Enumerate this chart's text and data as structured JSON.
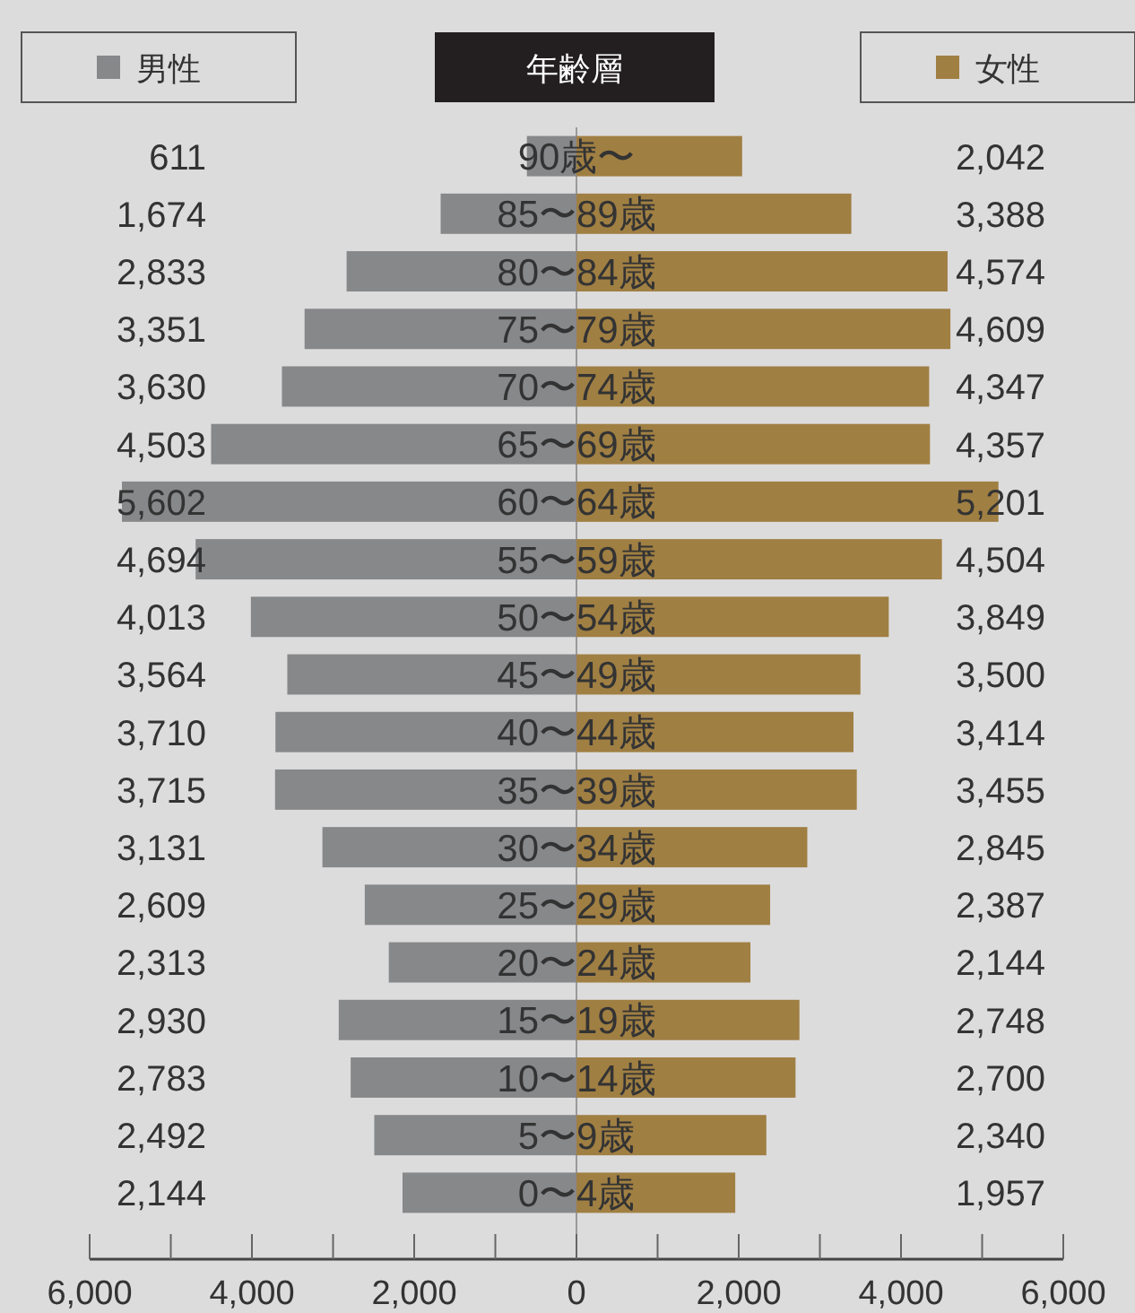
{
  "chart_data": [
    {
      "type": "bar",
      "orientation": "horizontal",
      "legend": "top",
      "ylabel": "年齢層",
      "categories": [
        "90歳〜",
        "85〜89歳",
        "80〜84歳",
        "75〜79歳",
        "70〜74歳",
        "65〜69歳",
        "60〜64歳",
        "55〜59歳",
        "50〜54歳",
        "45〜49歳",
        "40〜44歳",
        "35〜39歳",
        "30〜34歳",
        "25〜29歳",
        "20〜24歳",
        "15〜19歳",
        "10〜14歳",
        "5〜9歳",
        "0〜4歳"
      ],
      "series": [
        {
          "name": "男性",
          "color": "#87888a",
          "values": [
            611,
            1674,
            2833,
            3351,
            3630,
            4503,
            5602,
            4694,
            4013,
            3564,
            3710,
            3715,
            3131,
            2609,
            2313,
            2930,
            2783,
            2492,
            2144
          ],
          "value_labels": [
            "611",
            "1,674",
            "2,833",
            "3,351",
            "3,630",
            "4,503",
            "5,602",
            "4,694",
            "4,013",
            "3,564",
            "3,710",
            "3,715",
            "3,131",
            "2,609",
            "2,313",
            "2,930",
            "2,783",
            "2,492",
            "2,144"
          ]
        }
      ],
      "xlim": [
        6000,
        0
      ],
      "xticks": [
        {
          "value": 6000,
          "label": "6,000"
        },
        {
          "value": 5000,
          "label": null
        },
        {
          "value": 4000,
          "label": "4,000"
        },
        {
          "value": 3000,
          "label": null
        },
        {
          "value": 2000,
          "label": "2,000"
        },
        {
          "value": 1000,
          "label": null
        },
        0
      ]
    },
    {
      "type": "bar",
      "orientation": "horizontal",
      "legend": "top",
      "tick_labels": "x",
      "series": [
        {
          "name": "女性",
          "color": "#a07f43",
          "values": [
            2042,
            3388,
            4574,
            4609,
            4347,
            4357,
            5201,
            4504,
            3849,
            3500,
            3414,
            3455,
            2845,
            2387,
            2144,
            2748,
            2700,
            2340,
            1957
          ],
          "value_labels": [
            "2,042",
            "3,388",
            "4,574",
            "4,609",
            "4,347",
            "4,357",
            "5,201",
            "4,504",
            "3,849",
            "3,500",
            "3,414",
            "3,455",
            "2,845",
            "2,387",
            "2,144",
            "2,748",
            "2,700",
            "2,340",
            "1,957"
          ]
        }
      ],
      "xlim": [
        0,
        6000
      ],
      "xticks": [
        {
          "value": 0,
          "label": null
        },
        {
          "value": 1000,
          "label": null
        },
        {
          "value": 2000,
          "label": "2,000"
        },
        {
          "value": 3000,
          "label": null
        },
        {
          "value": 4000,
          "label": "4,000"
        },
        {
          "value": 5000,
          "label": null
        },
        {
          "value": 6000,
          "label": "6,000"
        }
      ]
    }
  ]
}
